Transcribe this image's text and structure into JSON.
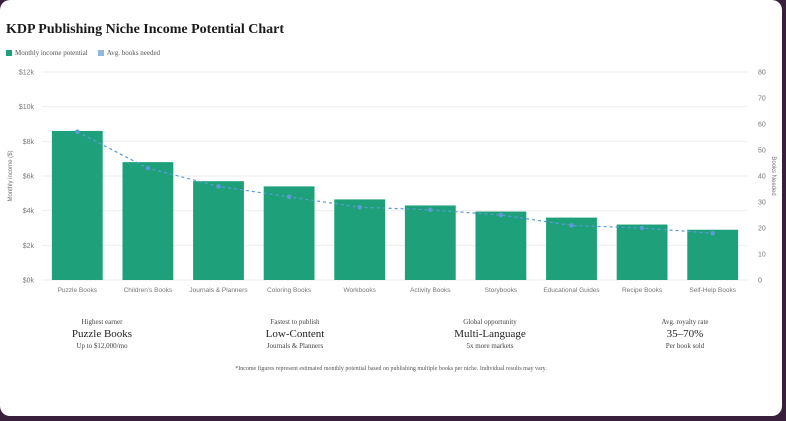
{
  "colors": {
    "bar": "#1ea07a",
    "line": "#5b9bd5",
    "grid": "#eeeeee",
    "axis_text": "#777777"
  },
  "chart_data": {
    "type": "bar",
    "title": "KDP Publishing Niche Income Potential Chart",
    "categories": [
      "Puzzle Books",
      "Children's Books",
      "Journals & Planners",
      "Coloring Books",
      "Workbooks",
      "Activity Books",
      "Storybooks",
      "Educational Guides",
      "Recipe Books",
      "Self-Help Books"
    ],
    "series": [
      {
        "name": "Monthly income potential",
        "axis": "left",
        "type": "bar",
        "values": [
          8600,
          6800,
          5700,
          5400,
          4650,
          4300,
          3950,
          3600,
          3200,
          2900
        ]
      },
      {
        "name": "Avg. books needed",
        "axis": "right",
        "type": "line",
        "values": [
          57,
          43,
          36,
          32,
          28,
          27,
          25,
          21,
          20,
          18
        ]
      }
    ],
    "ylabel": "Monthly income ($)",
    "y2label": "Books Needed",
    "ylim": [
      0,
      12000
    ],
    "y2lim": [
      0,
      80
    ],
    "yticks": [
      "$0k",
      "$2k",
      "$4k",
      "$6k",
      "$8k",
      "$10k",
      "$12k"
    ],
    "y2ticks": [
      "0",
      "10",
      "20",
      "30",
      "40",
      "50",
      "60",
      "70",
      "80"
    ],
    "legend": "top-left",
    "grid": true
  },
  "stats": [
    {
      "label": "Highest earner",
      "value": "Puzzle Books",
      "sub": "Up to $12,000/mo"
    },
    {
      "label": "Fastest to publish",
      "value": "Low-Content",
      "sub": "Journals & Planners"
    },
    {
      "label": "Global opportunity",
      "value": "Multi-Language",
      "sub": "5x more markets"
    },
    {
      "label": "Avg. royalty rate",
      "value": "35–70%",
      "sub": "Per book sold"
    }
  ],
  "footnote": "*Income figures represent estimated monthly potential based on publishing multiple books per niche. Individual results may vary."
}
